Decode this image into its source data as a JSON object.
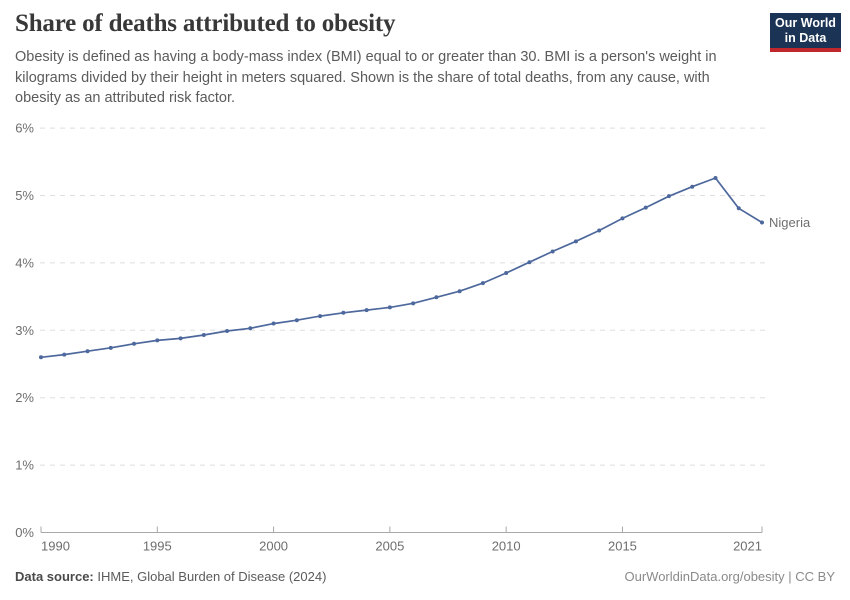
{
  "header": {
    "title": "Share of deaths attributed to obesity",
    "subtitle": "Obesity is defined as having a body-mass index (BMI) equal to or greater than 30. BMI is a person's weight in kilograms divided by their height in meters squared. Shown is the share of total deaths, from any cause, with obesity as an attributed risk factor.",
    "logo": {
      "line1": "Our World",
      "line2": "in Data",
      "bg_color": "#1b3455",
      "bar_color": "#c0272d"
    }
  },
  "footer": {
    "source_label": "Data source:",
    "source_text": " IHME, Global Burden of Disease (2024)",
    "link_text": "OurWorldinData.org/obesity | CC BY"
  },
  "chart_data": {
    "type": "line",
    "title": "Share of deaths attributed to obesity",
    "xlabel": "",
    "ylabel": "",
    "xlim": [
      1990,
      2021
    ],
    "ylim": [
      0,
      6
    ],
    "x_ticks": [
      1990,
      1995,
      2000,
      2005,
      2010,
      2015,
      2021
    ],
    "y_ticks": [
      0,
      1,
      2,
      3,
      4,
      5,
      6
    ],
    "y_tick_suffix": "%",
    "grid": "horizontal-dashed",
    "legend": "end-of-line-label",
    "colors": {
      "gridline": "#dedede",
      "axis": "#a8a8a8",
      "tick_label": "#6e6e6e"
    },
    "series": [
      {
        "name": "Nigeria",
        "color": "#4d689c",
        "x": [
          1990,
          1991,
          1992,
          1993,
          1994,
          1995,
          1996,
          1997,
          1998,
          1999,
          2000,
          2001,
          2002,
          2003,
          2004,
          2005,
          2006,
          2007,
          2008,
          2009,
          2010,
          2011,
          2012,
          2013,
          2014,
          2015,
          2016,
          2017,
          2018,
          2019,
          2020,
          2021
        ],
        "values": [
          2.6,
          2.64,
          2.69,
          2.74,
          2.8,
          2.85,
          2.88,
          2.93,
          2.99,
          3.03,
          3.1,
          3.15,
          3.21,
          3.26,
          3.3,
          3.34,
          3.4,
          3.49,
          3.58,
          3.7,
          3.85,
          4.01,
          4.17,
          4.32,
          4.48,
          4.66,
          4.82,
          4.99,
          5.13,
          5.26,
          4.81,
          4.6
        ]
      }
    ]
  }
}
